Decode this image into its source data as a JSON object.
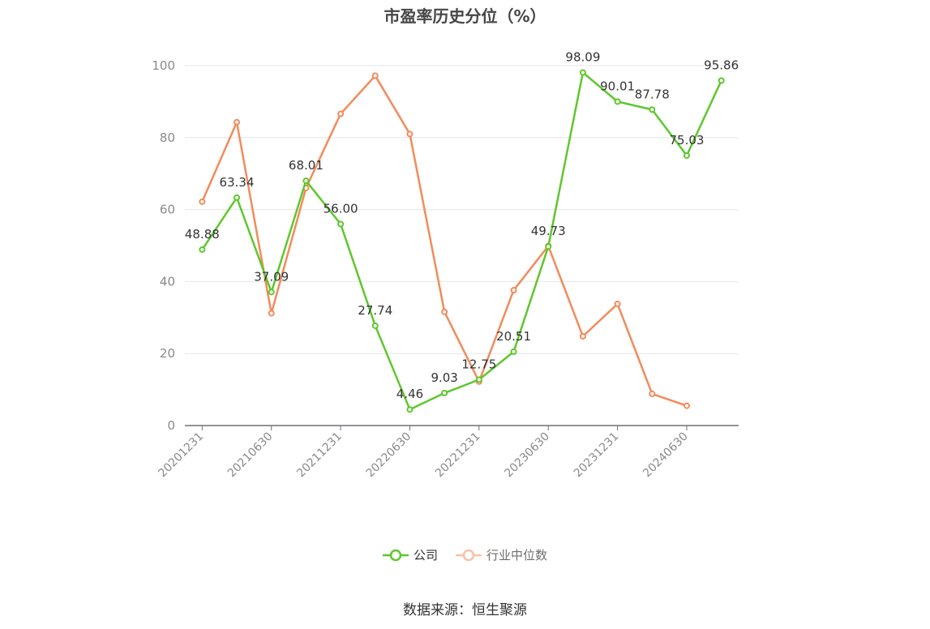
{
  "title": "市盈率历史分位（%）",
  "source": "数据来源：恒生聚源",
  "legend": {
    "company": "公司",
    "industry": "行业中位数"
  },
  "colors": {
    "company": "#5ec72d",
    "industry": "#f28b5b",
    "grid": "#e6e6e6",
    "axis": "#6e7079",
    "tick_label": "#8a8a8a",
    "data_label": "#333333"
  },
  "chart_data": {
    "type": "line",
    "title": "市盈率历史分位（%）",
    "x_tick_labels": [
      "20201231",
      "20210630",
      "20211231",
      "20220630",
      "20221231",
      "20230630",
      "20231231",
      "20240630"
    ],
    "y_ticks": [
      0,
      20,
      40,
      60,
      80,
      100
    ],
    "ylim": [
      0,
      100
    ],
    "grid": true,
    "legend_position": "bottom-center",
    "series": [
      {
        "name": "公司",
        "color": "#5ec72d",
        "values": [
          48.88,
          63.34,
          37.09,
          68.01,
          56.0,
          27.74,
          4.46,
          9.03,
          12.75,
          20.51,
          49.73,
          98.09,
          90.01,
          87.78,
          75.03,
          95.86
        ],
        "labels": [
          "48.88",
          "63.34",
          "37.09",
          "68.01",
          "56.00",
          "27.74",
          "4.46",
          "9.03",
          "12.75",
          "20.51",
          "49.73",
          "98.09",
          "90.01",
          "87.78",
          "75.03",
          "95.86"
        ]
      },
      {
        "name": "行业中位数",
        "color": "#f28b5b",
        "values": [
          62.2,
          84.3,
          31.2,
          66.0,
          86.6,
          97.2,
          81.0,
          31.6,
          12.2,
          37.6,
          49.9,
          24.8,
          33.8,
          8.8,
          5.5,
          null
        ]
      }
    ]
  }
}
